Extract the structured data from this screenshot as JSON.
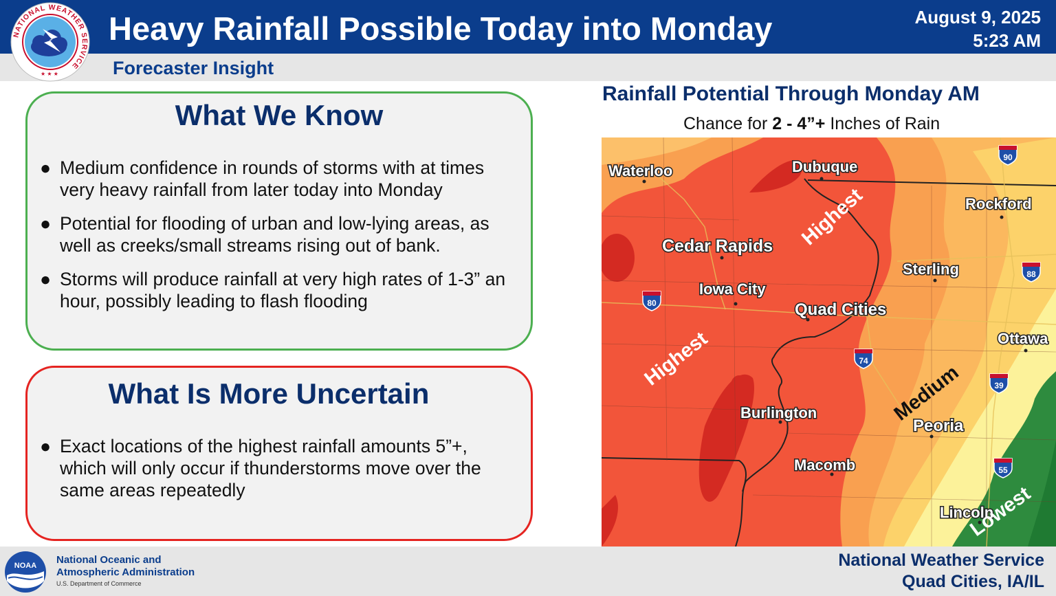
{
  "header": {
    "title": "Heavy Rainfall Possible Today into Monday",
    "date": "August 9, 2025",
    "time": "5:23 AM",
    "subtitle": "Forecaster Insight",
    "logo_text": "NATIONAL WEATHER SERVICE"
  },
  "know": {
    "heading": "What We Know",
    "bullets": [
      "Medium confidence in rounds of storms with at times very heavy rainfall from later today into Monday",
      "Potential for flooding of urban and low-lying areas, as well as creeks/small streams rising out of bank.",
      " Storms will produce rainfall at very high rates of 1-3” an hour, possibly leading to flash flooding"
    ]
  },
  "uncertain": {
    "heading": "What Is More Uncertain",
    "bullets": [
      "Exact locations of the highest rainfall amounts 5”+, which will only occur if thunderstorms move over the same areas repeatedly"
    ]
  },
  "bullet_char": "●",
  "map": {
    "title": "Rainfall Potential Through Monday AM",
    "sub_prefix": "Chance for ",
    "sub_bold": "2 - 4”+",
    "sub_suffix": " Inches of Rain",
    "cities": [
      "Waterloo",
      "Dubuque",
      "Rockford",
      "Cedar Rapids",
      "Sterling",
      "Iowa City",
      "Quad Cities",
      "Ottawa",
      "Burlington",
      "Peoria",
      "Macomb",
      "Lincoln"
    ],
    "interstates": [
      "90",
      "88",
      "80",
      "74",
      "39",
      "55"
    ],
    "levels": [
      "Highest",
      "Highest",
      "Medium",
      "Lowest"
    ],
    "colors": {
      "highest_dark": "#d42a22",
      "highest": "#f2553a",
      "high_mid": "#f9a050",
      "medium": "#fcd26a",
      "low_medium": "#fcf29a",
      "lowest": "#2e8b3e"
    }
  },
  "footer": {
    "noaa_line1": "National Oceanic and",
    "noaa_line2": "Atmospheric Administration",
    "noaa_dept": "U.S. Department of Commerce",
    "nws_line1": "National Weather Service",
    "nws_line2": "Quad Cities, IA/IL"
  },
  "brand": {
    "blue": "#0b3d8c",
    "navy": "#0b2e6b",
    "green": "#4caf50",
    "red": "#e52421"
  }
}
